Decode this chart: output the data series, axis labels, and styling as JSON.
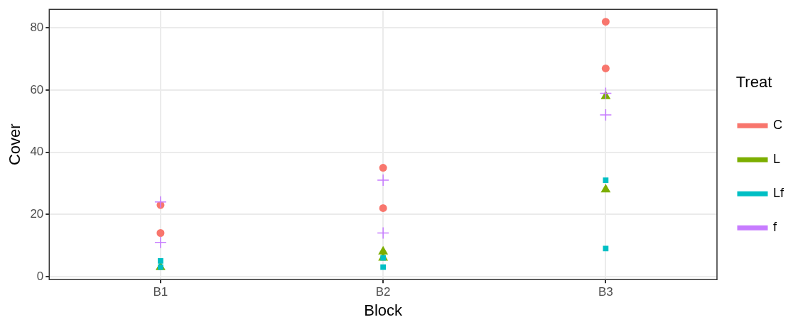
{
  "chart_data": {
    "type": "scatter",
    "xlabel": "Block",
    "ylabel": "Cover",
    "legend_title": "Treat",
    "legend": "right",
    "grid": true,
    "categories": [
      "B1",
      "B2",
      "B3"
    ],
    "ylim": [
      -1,
      86
    ],
    "yticks": [
      0,
      20,
      40,
      60,
      80
    ],
    "series": [
      {
        "name": "C",
        "color": "#f8766d",
        "marker": "circle",
        "x": [
          "B1",
          "B1",
          "B2",
          "B2",
          "B3",
          "B3"
        ],
        "values": [
          23,
          14,
          35,
          22,
          82,
          67
        ]
      },
      {
        "name": "L",
        "color": "#7cae00",
        "marker": "triangle",
        "x": [
          "B1",
          "B1",
          "B2",
          "B2",
          "B3",
          "B3"
        ],
        "values": [
          3,
          null,
          8,
          6,
          58,
          28
        ]
      },
      {
        "name": "Lf",
        "color": "#00bfc4",
        "marker": "square",
        "x": [
          "B1",
          "B1",
          "B2",
          "B2",
          "B3",
          "B3"
        ],
        "values": [
          5,
          3,
          6,
          3,
          31,
          9
        ]
      },
      {
        "name": "f",
        "color": "#c77cff",
        "marker": "cross",
        "x": [
          "B1",
          "B1",
          "B2",
          "B2",
          "B3",
          "B3"
        ],
        "values": [
          24,
          11,
          31,
          14,
          59,
          52
        ]
      }
    ]
  }
}
